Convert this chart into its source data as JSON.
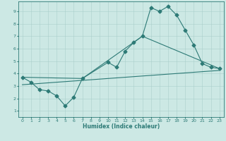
{
  "title": "",
  "xlabel": "Humidex (Indice chaleur)",
  "xlim": [
    -0.5,
    23.5
  ],
  "ylim": [
    0.5,
    9.8
  ],
  "xticks": [
    0,
    1,
    2,
    3,
    4,
    5,
    6,
    7,
    8,
    9,
    10,
    11,
    12,
    13,
    14,
    15,
    16,
    17,
    18,
    19,
    20,
    21,
    22,
    23
  ],
  "yticks": [
    1,
    2,
    3,
    4,
    5,
    6,
    7,
    8,
    9
  ],
  "background_color": "#cce8e4",
  "grid_color": "#aacfcb",
  "line_color": "#2d7a76",
  "series1_x": [
    0,
    1,
    2,
    3,
    4,
    5,
    6,
    7,
    10,
    11,
    12,
    13,
    14,
    15,
    16,
    17,
    18,
    19,
    20,
    21,
    22,
    23
  ],
  "series1_y": [
    3.7,
    3.3,
    2.7,
    2.6,
    2.2,
    1.4,
    2.1,
    3.6,
    4.9,
    4.5,
    5.8,
    6.5,
    7.0,
    9.3,
    9.0,
    9.4,
    8.7,
    7.5,
    6.3,
    4.8,
    4.5,
    4.4
  ],
  "series2_x": [
    0,
    7,
    14,
    23
  ],
  "series2_y": [
    3.7,
    3.6,
    7.0,
    4.4
  ],
  "series3_x": [
    0,
    23
  ],
  "series3_y": [
    3.1,
    4.25
  ],
  "markersize": 2.5,
  "linewidth": 0.8
}
